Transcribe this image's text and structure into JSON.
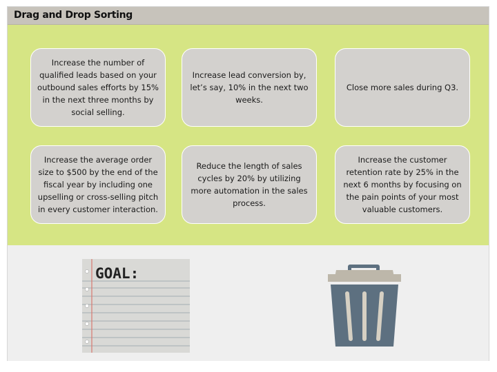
{
  "title": "Drag and Drop Sorting",
  "cards": [
    {
      "text": "Increase the number of qualified leads based on your outbound sales efforts by 15% in the next three months by social selling."
    },
    {
      "text": "Increase lead conversion by, let’s say, 10% in the next two weeks."
    },
    {
      "text": "Close more sales during Q3."
    },
    {
      "text": "Increase the average order size to $500 by the end of the fiscal year by including one upselling or cross-selling pitch in every customer interaction."
    },
    {
      "text": "Reduce the length of sales cycles by 20% by utilizing more automation in the sales process."
    },
    {
      "text": "Increase the customer retention rate by 25% in the next 6 months by focusing on the pain points of your most valuable customers."
    }
  ],
  "goal_notepad": {
    "heading": "GOAL:",
    "icon": "notepad-icon"
  },
  "trash": {
    "icon": "trash-can-icon"
  },
  "colors": {
    "title_bar": "#c7c3bb",
    "green_area": "#d6e584",
    "card": "#d3d1ce",
    "trash_body": "#5d7080",
    "trash_lid": "#bdb7aa"
  }
}
